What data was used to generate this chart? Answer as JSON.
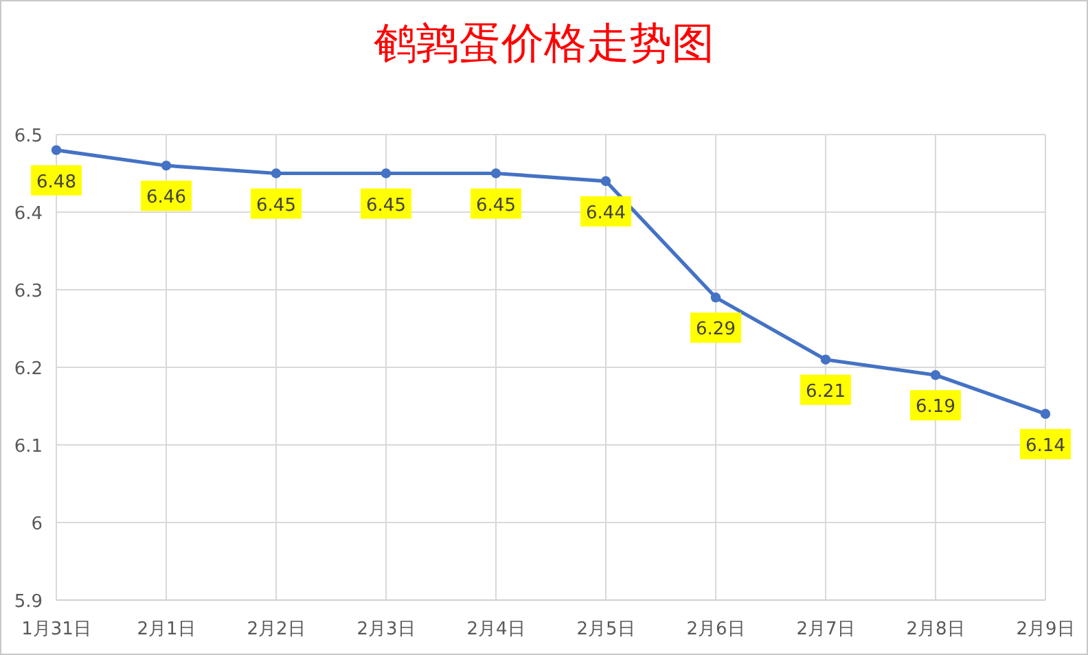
{
  "chart_data": {
    "type": "line",
    "title": "鹌鹑蛋价格走势图",
    "categories": [
      "1月31日",
      "2月1日",
      "2月2日",
      "2月3日",
      "2月4日",
      "2月5日",
      "2月6日",
      "2月7日",
      "2月8日",
      "2月9日"
    ],
    "series": [
      {
        "color": "#4472c4",
        "values": [
          6.48,
          6.46,
          6.45,
          6.45,
          6.45,
          6.44,
          6.29,
          6.21,
          6.19,
          6.14
        ]
      }
    ],
    "ylim": [
      5.9,
      6.5
    ],
    "yticks": [
      5.9,
      6,
      6.1,
      6.2,
      6.3,
      6.4,
      6.5
    ],
    "grid": true,
    "marker": "circle",
    "line_style": "solid",
    "data_labels": true
  }
}
